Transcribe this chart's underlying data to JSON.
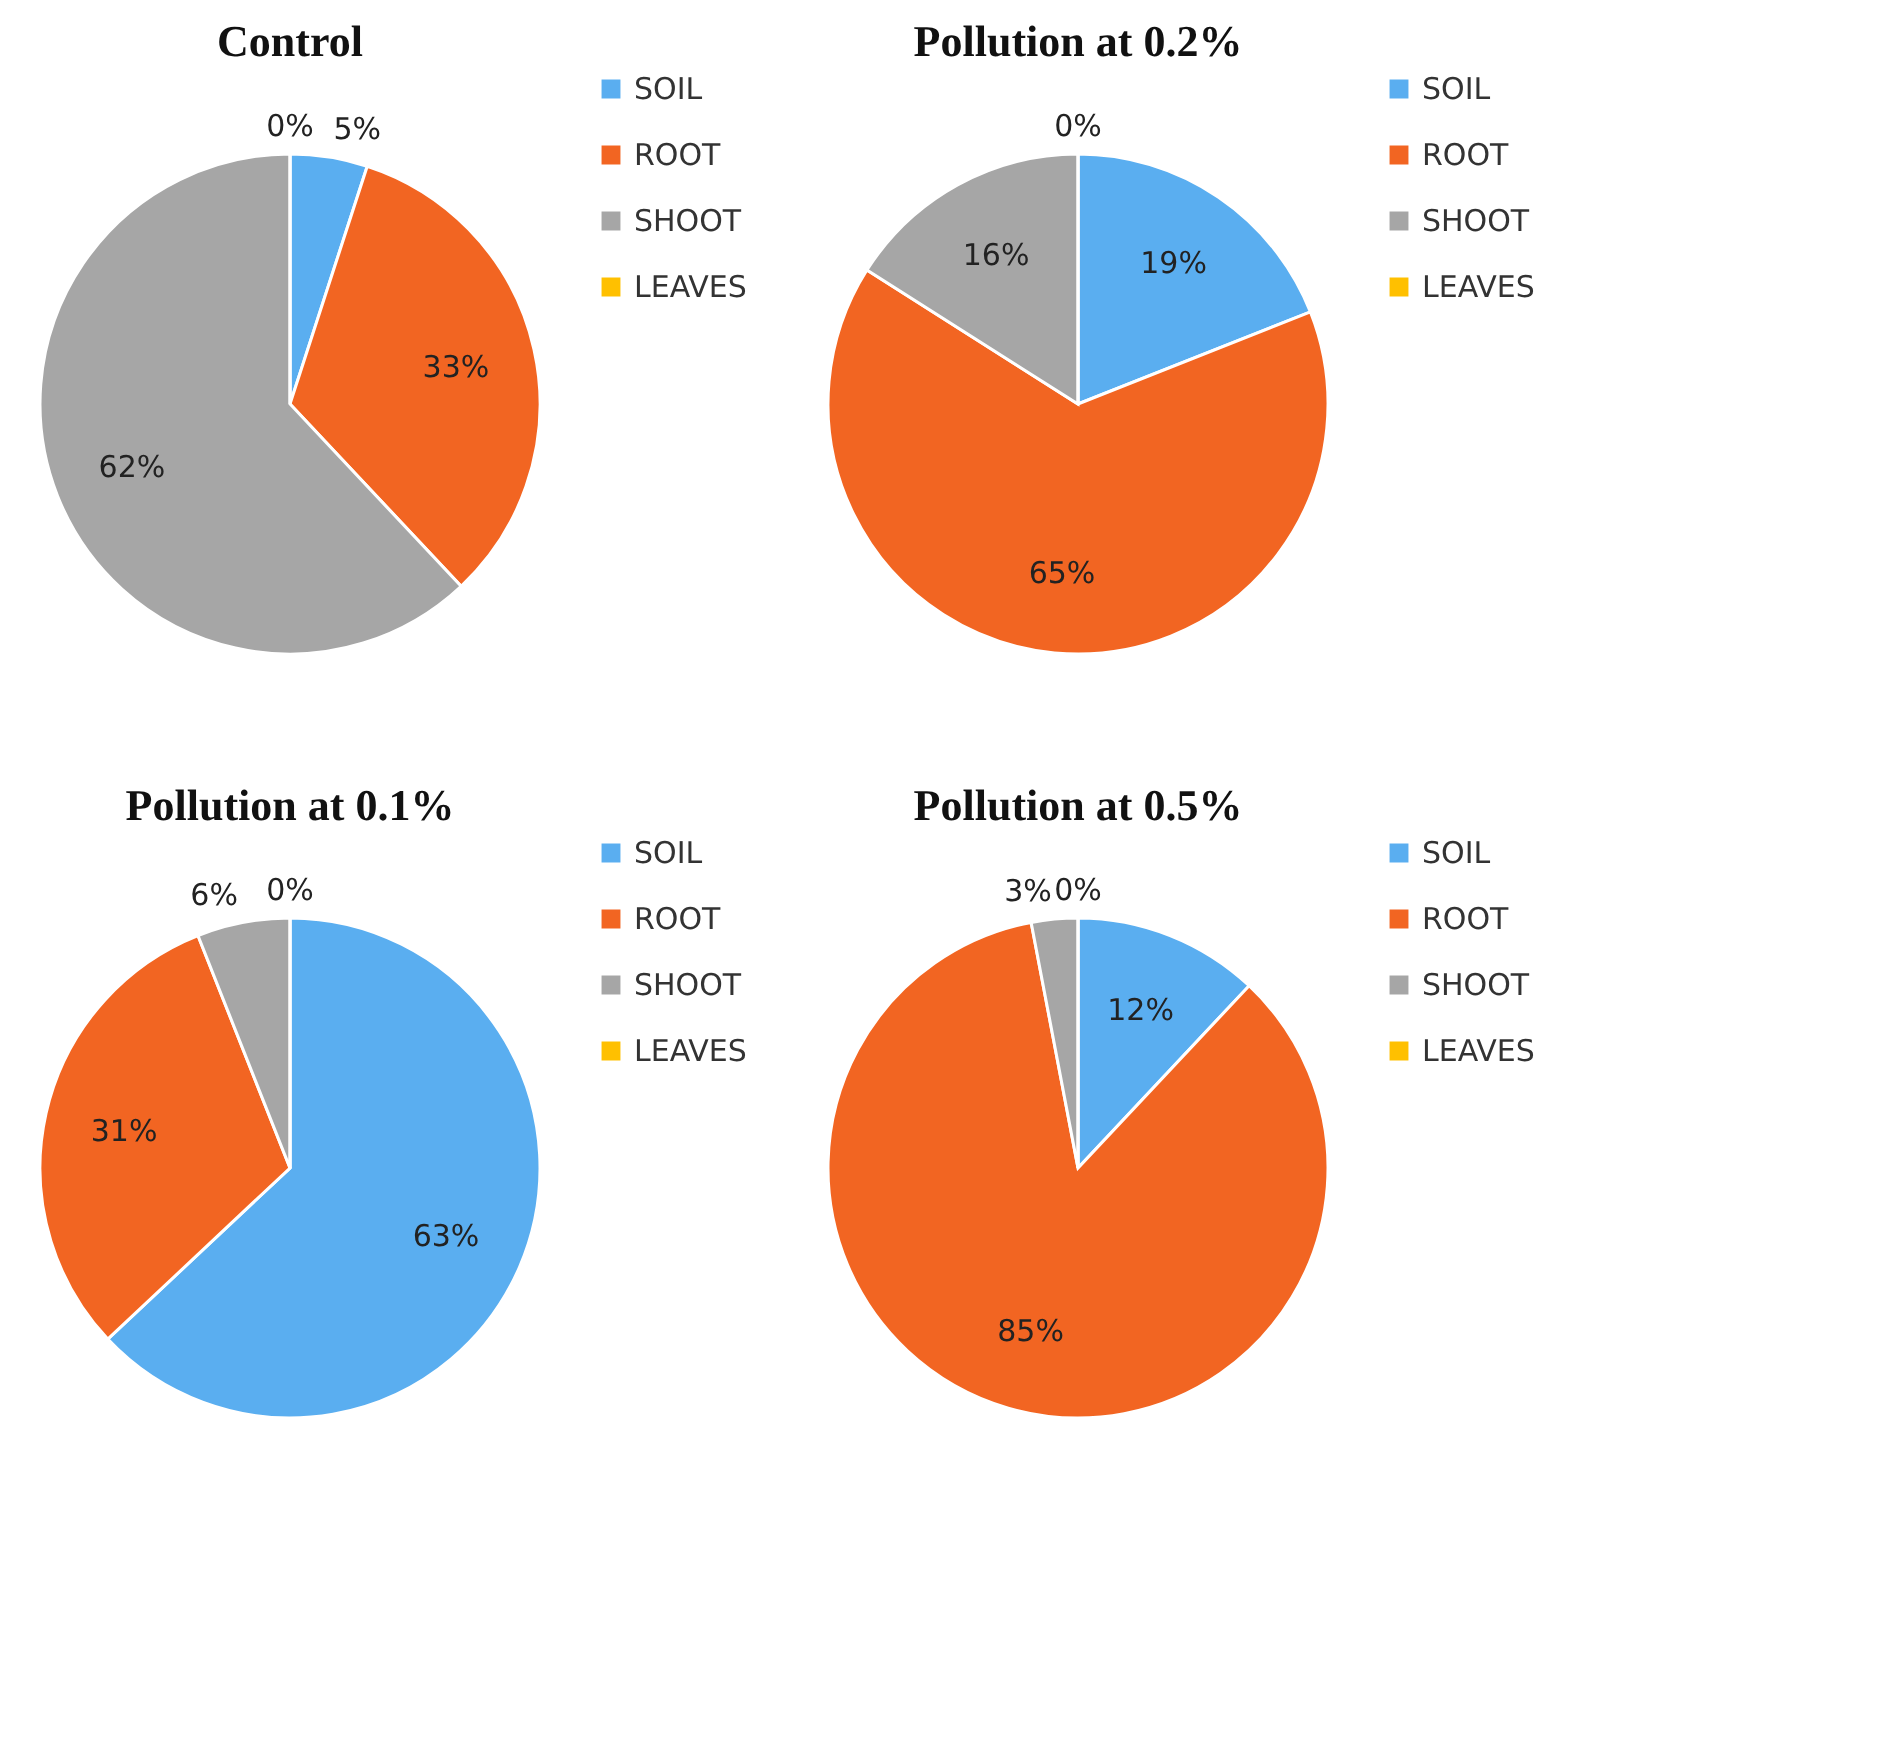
{
  "chart_data": [
    {
      "type": "pie",
      "title": "Control",
      "categories": [
        "SOIL",
        "ROOT",
        "SHOOT",
        "LEAVES"
      ],
      "values": [
        5,
        33,
        62,
        0
      ],
      "value_labels": [
        "5%",
        "33%",
        "62%",
        "0%"
      ],
      "colors": [
        "#5aaef0",
        "#f26522",
        "#a6a6a6",
        "#ffc000"
      ],
      "legend": "right"
    },
    {
      "type": "pie",
      "title": "Pollution at 0.2%",
      "categories": [
        "SOIL",
        "ROOT",
        "SHOOT",
        "LEAVES"
      ],
      "values": [
        19,
        65,
        16,
        0
      ],
      "value_labels": [
        "19%",
        "65%",
        "16%",
        "0%"
      ],
      "colors": [
        "#5aaef0",
        "#f26522",
        "#a6a6a6",
        "#ffc000"
      ],
      "legend": "right"
    },
    {
      "type": "pie",
      "title": "Pollution at 0.1%",
      "categories": [
        "SOIL",
        "ROOT",
        "SHOOT",
        "LEAVES"
      ],
      "values": [
        63,
        31,
        6,
        0
      ],
      "value_labels": [
        "63%",
        "31%",
        "6%",
        "0%"
      ],
      "colors": [
        "#5aaef0",
        "#f26522",
        "#a6a6a6",
        "#ffc000"
      ],
      "legend": "right"
    },
    {
      "type": "pie",
      "title": "Pollution at 0.5%",
      "categories": [
        "SOIL",
        "ROOT",
        "SHOOT",
        "LEAVES"
      ],
      "values": [
        12,
        85,
        3,
        0
      ],
      "value_labels": [
        "12%",
        "85%",
        "3%",
        "0%"
      ],
      "colors": [
        "#5aaef0",
        "#f26522",
        "#a6a6a6",
        "#ffc000"
      ],
      "legend": "right"
    }
  ]
}
